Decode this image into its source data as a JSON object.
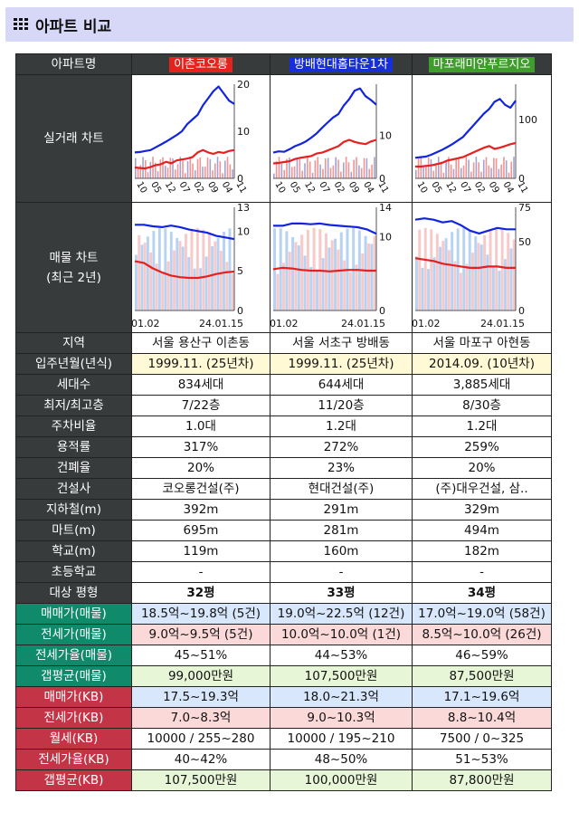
{
  "header": {
    "title": "아파트 비교",
    "icon": "grid-icon"
  },
  "apartments": [
    {
      "name": "이촌코오롱",
      "color": "#e3231c"
    },
    {
      "name": "방배현대홈타운1차",
      "color": "#1730d6"
    },
    {
      "name": "마포래미안푸르지오",
      "color": "#3f9e2b"
    }
  ],
  "labels": {
    "name": "아파트명",
    "trade_chart": "실거래 차트",
    "listing_chart": "매물 차트",
    "listing_chart_sub": "(최근 2년)",
    "region": "지역",
    "move_in": "입주년월(년식)",
    "households": "세대수",
    "floors": "최저/최고층",
    "parking": "주차비율",
    "far": "용적률",
    "bcr": "건폐율",
    "builder": "건설사",
    "subway": "지하철(m)",
    "mart": "마트(m)",
    "school": "학교(m)",
    "elementary": "초등학교",
    "pyeong": "대상 평형",
    "sale_listing": "매매가(매물)",
    "jeonse_listing": "전세가(매물)",
    "jeonse_rate_listing": "전세가율(매물)",
    "gap_listing": "갭평균(매물)",
    "sale_kb": "매매가(KB)",
    "jeonse_kb": "전세가(KB)",
    "monthly_kb": "월세(KB)",
    "jeonse_rate_kb": "전세가율(KB)",
    "gap_kb": "갭평균(KB)"
  },
  "rows": {
    "region": [
      "서울 용산구 이촌동",
      "서울 서초구 방배동",
      "서울 마포구 아현동"
    ],
    "move_in": [
      "1999.11. (25년차)",
      "1999.11. (25년차)",
      "2014.09. (10년차)"
    ],
    "households": [
      "834세대",
      "644세대",
      "3,885세대"
    ],
    "floors": [
      "7/22층",
      "11/20층",
      "8/30층"
    ],
    "parking": [
      "1.0대",
      "1.2대",
      "1.2대"
    ],
    "far": [
      "317%",
      "272%",
      "259%"
    ],
    "bcr": [
      "20%",
      "23%",
      "20%"
    ],
    "builder": [
      "코오롱건설(주)",
      "현대건설(주)",
      "(주)대우건설, 삼.."
    ],
    "subway": [
      "392m",
      "291m",
      "329m"
    ],
    "mart": [
      "695m",
      "281m",
      "494m"
    ],
    "school": [
      "119m",
      "160m",
      "182m"
    ],
    "elementary": [
      "-",
      "-",
      "-"
    ],
    "pyeong": [
      "32평",
      "33평",
      "34평"
    ],
    "sale_listing": [
      "18.5억~19.8억 (5건)",
      "19.0억~22.5억 (12건)",
      "17.0억~19.0억 (58건)"
    ],
    "jeonse_listing": [
      "9.0억~9.5억 (5건)",
      "10.0억~10.0억 (1건)",
      "8.5억~10.0억 (26건)"
    ],
    "jeonse_rate_listing": [
      "45~51%",
      "44~53%",
      "46~59%"
    ],
    "gap_listing": [
      "99,000만원",
      "107,500만원",
      "87,500만원"
    ],
    "sale_kb": [
      "17.5~19.3억",
      "18.0~21.3억",
      "17.1~19.6억"
    ],
    "jeonse_kb": [
      "7.0~8.3억",
      "9.0~10.3억",
      "8.8~10.4억"
    ],
    "monthly_kb": [
      "10000 / 255~280",
      "10000 / 195~210",
      "7500 / 0~325"
    ],
    "jeonse_rate_kb": [
      "40~42%",
      "48~50%",
      "51~53%"
    ],
    "gap_kb": [
      "107,500만원",
      "100,000만원",
      "87,800만원"
    ]
  },
  "chart_data": [
    {
      "type": "line",
      "chart": "trade",
      "apartment": "이촌코오롱",
      "yticks": [
        "20",
        "10",
        "0"
      ],
      "ylim": [
        0,
        20
      ],
      "xticks": [
        "10",
        "05",
        "12",
        "07",
        "02",
        "09",
        "04",
        "11"
      ],
      "series": [
        {
          "color": "#1224e0",
          "values": [
            5.5,
            5.6,
            5.8,
            6.0,
            6.6,
            7.2,
            7.8,
            8.5,
            9.2,
            10,
            11.5,
            12.5,
            13.5,
            15.5,
            17,
            18.5,
            19.5,
            18,
            16.5,
            15.8
          ]
        },
        {
          "color": "#e61f1f",
          "values": [
            2.3,
            2.2,
            2.1,
            2.4,
            2.8,
            3.0,
            3.5,
            3.2,
            3.8,
            4.0,
            4.2,
            4.5,
            5.5,
            6.0,
            5.5,
            5.2,
            5.6,
            5.4,
            5.8,
            6.0
          ]
        }
      ]
    },
    {
      "type": "line",
      "chart": "trade",
      "apartment": "방배현대홈타운1차",
      "yticks": [
        "10",
        "0"
      ],
      "ylim": [
        0,
        22
      ],
      "xticks": [
        "10",
        "05",
        "12",
        "07",
        "02",
        "09",
        "04",
        "11"
      ],
      "series": [
        {
          "color": "#1224e0",
          "values": [
            6.0,
            6.3,
            6.2,
            6.8,
            7.5,
            8.0,
            8.6,
            9.5,
            10.5,
            11.8,
            13,
            14.2,
            15,
            17,
            18.5,
            20.5,
            21,
            19.2,
            18.3,
            17.2
          ]
        },
        {
          "color": "#e61f1f",
          "values": [
            3.5,
            3.6,
            3.8,
            4.0,
            4.5,
            4.8,
            5.0,
            5.2,
            5.8,
            6.0,
            6.5,
            7.0,
            7.5,
            8.5,
            9.0,
            8.5,
            8.2,
            8.0,
            8.6,
            9.0
          ]
        }
      ]
    },
    {
      "type": "line",
      "chart": "trade",
      "apartment": "마포래미안푸르지오",
      "yticks": [
        "100",
        "0"
      ],
      "ylim": [
        0,
        160
      ],
      "xticks": [
        "10",
        "05",
        "12",
        "07",
        "02",
        "09",
        "04",
        "11"
      ],
      "series": [
        {
          "color": "#1224e0",
          "values": [
            35,
            36,
            37,
            40,
            44,
            48,
            53,
            58,
            64,
            70,
            80,
            90,
            100,
            110,
            118,
            130,
            135,
            125,
            120,
            132
          ]
        },
        {
          "color": "#e61f1f",
          "values": [
            20,
            20,
            21,
            22,
            24,
            26,
            30,
            32,
            34,
            36,
            40,
            44,
            48,
            52,
            55,
            50,
            52,
            55,
            58,
            60
          ]
        }
      ]
    },
    {
      "type": "line",
      "chart": "listing",
      "apartment": "이촌코오롱",
      "yticks": [
        "13",
        "10",
        "5",
        "0"
      ],
      "ylim": [
        0,
        13
      ],
      "xticks": [
        "01.02",
        "24.01.15"
      ],
      "series": [
        {
          "color": "#1224e0",
          "values": [
            10.8,
            10.8,
            10.6,
            10.5,
            10.7,
            10.5,
            10.2,
            10.0,
            9.8,
            9.4,
            9.2,
            9.0
          ]
        },
        {
          "color": "#e61f1f",
          "values": [
            6.2,
            6.0,
            5.3,
            4.8,
            4.4,
            4.2,
            4.1,
            4.1,
            4.3,
            4.6,
            4.8,
            4.9
          ]
        }
      ]
    },
    {
      "type": "line",
      "chart": "listing",
      "apartment": "방배현대홈타운1차",
      "yticks": [
        "14",
        "10",
        "0"
      ],
      "ylim": [
        0,
        14
      ],
      "xticks": [
        "01.02",
        "24.01.15"
      ],
      "series": [
        {
          "color": "#1224e0",
          "values": [
            11.5,
            11.5,
            11.8,
            11.8,
            11.7,
            11.8,
            11.6,
            11.5,
            11.4,
            11.3,
            11.0,
            10.4
          ]
        },
        {
          "color": "#e61f1f",
          "values": [
            5.6,
            5.8,
            5.7,
            5.5,
            5.4,
            5.4,
            5.3,
            5.4,
            5.5,
            5.5,
            5.4,
            5.4
          ]
        }
      ]
    },
    {
      "type": "line",
      "chart": "listing",
      "apartment": "마포래미안푸르지오",
      "yticks": [
        "75",
        "50",
        "0"
      ],
      "ylim": [
        0,
        75
      ],
      "xticks": [
        "01.02",
        "24.01.15"
      ],
      "series": [
        {
          "color": "#1224e0",
          "values": [
            66,
            67,
            66,
            64,
            65,
            62,
            58,
            56,
            58,
            60,
            59,
            59
          ]
        },
        {
          "color": "#e61f1f",
          "values": [
            38,
            37,
            36,
            34,
            33,
            32,
            31,
            31,
            32,
            32,
            31,
            31
          ]
        }
      ]
    }
  ]
}
